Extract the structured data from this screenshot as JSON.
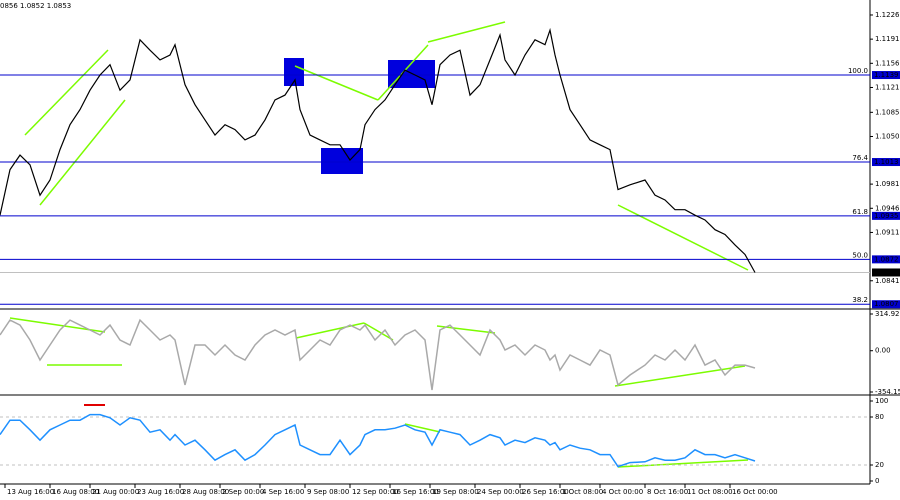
{
  "header": {
    "text": "0856 1.0852 1.0853"
  },
  "chart_data": [
    {
      "type": "line",
      "color": "#000000",
      "x": [
        0,
        2,
        4,
        6,
        8,
        10,
        12,
        14,
        16,
        18,
        20,
        22,
        24,
        26,
        28,
        30,
        32,
        34,
        35,
        37,
        39,
        41,
        43,
        45,
        47,
        49,
        51,
        53,
        55,
        57,
        59,
        60,
        62,
        64,
        66,
        68,
        70,
        72,
        73,
        75,
        77,
        79,
        81,
        83,
        85,
        86.4,
        88,
        90,
        92,
        94,
        96,
        98,
        100,
        101,
        103,
        105,
        107,
        109,
        110,
        111,
        112,
        114,
        116,
        118,
        120,
        122,
        123.6,
        126,
        129,
        131,
        133,
        135,
        137,
        139,
        141,
        143,
        145,
        147,
        149,
        151
      ],
      "values": [
        1.0936,
        1.1002,
        1.1023,
        1.1009,
        1.0965,
        1.0987,
        1.1031,
        1.1067,
        1.1089,
        1.1117,
        1.1139,
        1.1154,
        1.1117,
        1.1132,
        1.119,
        1.1175,
        1.1161,
        1.1168,
        1.1183,
        1.1125,
        1.1096,
        1.1074,
        1.1052,
        1.1067,
        1.106,
        1.1045,
        1.1052,
        1.1074,
        1.1103,
        1.111,
        1.1132,
        1.1089,
        1.1052,
        1.1045,
        1.1038,
        1.1038,
        1.1016,
        1.1031,
        1.1067,
        1.1089,
        1.1103,
        1.1125,
        1.1146,
        1.1139,
        1.1132,
        1.1096,
        1.1154,
        1.1168,
        1.1175,
        1.111,
        1.1125,
        1.1161,
        1.1197,
        1.1161,
        1.1139,
        1.1168,
        1.119,
        1.1183,
        1.1204,
        1.1168,
        1.1139,
        1.1089,
        1.1067,
        1.1045,
        1.1038,
        1.1031,
        1.0973,
        1.098,
        1.0987,
        1.0965,
        1.0958,
        1.0944,
        1.0944,
        1.0936,
        1.0929,
        1.0915,
        1.0908,
        1.0893,
        1.0879,
        1.0853
      ],
      "xlim": [
        0,
        174
      ],
      "ylim": [
        1.0803,
        1.12477
      ],
      "yticks": [
        1.1226,
        1.1191,
        1.1156,
        1.1121,
        1.1085,
        {
          "value": 1.105,
          "label": "1.1050"
        },
        1.0981,
        1.0946,
        1.0911,
        1.0841
      ],
      "levels": [
        {
          "label": "100.0",
          "value": 1.1139
        },
        {
          "label": "76.4",
          "value": 1.1013
        },
        {
          "label": "61.8",
          "value": 1.0935
        },
        {
          "label": "50.0",
          "value": 1.0872
        },
        {
          "label": "38.2",
          "value": 1.0807
        }
      ],
      "level_color": "#0000cd",
      "last": 1.0853
    },
    {
      "type": "line",
      "color": "#a9a9a9",
      "x": [
        0,
        2,
        4,
        6,
        8,
        10,
        12,
        14,
        16,
        18,
        20,
        22,
        24,
        26,
        28,
        30,
        32,
        34,
        35,
        37,
        39,
        41,
        43,
        45,
        47,
        49,
        51,
        53,
        55,
        57,
        59,
        60,
        62,
        64,
        66,
        68,
        70,
        72,
        73,
        75,
        77,
        79,
        81,
        83,
        85,
        86.4,
        88,
        90,
        92,
        94,
        96,
        98,
        100,
        101,
        103,
        105,
        107,
        109,
        110,
        111,
        112,
        114,
        116,
        118,
        120,
        122,
        123.6,
        126,
        129,
        131,
        133,
        135,
        137,
        139,
        141,
        143,
        145,
        147,
        149,
        151
      ],
      "values": [
        135,
        263,
        220,
        92,
        -80,
        49,
        178,
        263,
        220,
        178,
        135,
        220,
        92,
        49,
        263,
        178,
        92,
        135,
        92,
        -294,
        49,
        49,
        -37,
        49,
        -37,
        -80,
        49,
        135,
        178,
        135,
        178,
        -80,
        6,
        92,
        49,
        178,
        220,
        178,
        220,
        92,
        178,
        49,
        135,
        178,
        92,
        -337,
        178,
        220,
        135,
        49,
        -37,
        178,
        92,
        6,
        49,
        -37,
        49,
        6,
        -80,
        -37,
        -166,
        -37,
        -80,
        -123,
        6,
        -37,
        -294,
        -208,
        -123,
        -37,
        -80,
        6,
        -80,
        49,
        -123,
        -80,
        -208,
        -123,
        -123,
        -148
      ],
      "xlim": [
        0,
        174
      ],
      "ylim": [
        -362.7,
        340.7
      ],
      "yticks": [
        314.9232,
        {
          "value": 0,
          "label": "0.00"
        },
        -354.159
      ]
    },
    {
      "type": "line",
      "color": "#1e90ff",
      "x": [
        0,
        2,
        4,
        6,
        8,
        10,
        12,
        14,
        16,
        18,
        20,
        22,
        24,
        26,
        28,
        30,
        32,
        34,
        35,
        37,
        39,
        41,
        43,
        45,
        47,
        49,
        51,
        53,
        55,
        57,
        59,
        60,
        62,
        64,
        66,
        68,
        70,
        72,
        73,
        75,
        77,
        79,
        81,
        83,
        85,
        86.4,
        88,
        90,
        92,
        94,
        96,
        98,
        100,
        101,
        103,
        105,
        107,
        109,
        110,
        111,
        112,
        114,
        116,
        118,
        120,
        122,
        123.6,
        126,
        129,
        131,
        133,
        135,
        137,
        139,
        141,
        143,
        145,
        147,
        149,
        151
      ],
      "values": [
        58,
        76,
        76,
        64,
        51,
        64,
        70,
        76,
        76,
        83,
        83,
        79,
        70,
        79,
        76,
        61,
        64,
        51,
        58,
        45,
        51,
        39,
        26,
        33,
        39,
        26,
        33,
        45,
        58,
        64,
        70,
        45,
        39,
        33,
        33,
        51,
        33,
        45,
        58,
        64,
        64,
        66,
        70,
        64,
        61,
        45,
        64,
        61,
        58,
        45,
        51,
        58,
        54,
        45,
        51,
        48,
        54,
        51,
        45,
        48,
        39,
        45,
        41,
        39,
        33,
        33,
        18,
        23,
        24,
        29,
        26,
        26,
        29,
        39,
        33,
        33,
        29,
        33,
        29,
        25
      ],
      "xlim": [
        0,
        174
      ],
      "ylim": [
        -2.5,
        105
      ],
      "yticks": [
        100,
        80,
        20,
        0
      ],
      "levels": [
        80,
        20
      ],
      "xticks": [
        {
          "value": 1,
          "label": "13 Aug 16:00"
        },
        {
          "value": 10,
          "label": "16 Aug 08:00"
        },
        {
          "value": 18,
          "label": "21 Aug 00:00"
        },
        {
          "value": 27,
          "label": "23 Aug 16:00"
        },
        {
          "value": 36,
          "label": "28 Aug 08:00"
        },
        {
          "value": 44,
          "label": "2 Sep 00:00"
        },
        {
          "value": 52,
          "label": "4 Sep 16:00"
        },
        {
          "value": 61,
          "label": "9 Sep 08:00"
        },
        {
          "value": 70,
          "label": "12 Sep 00:00"
        },
        {
          "value": 78,
          "label": "16 Sep 16:00"
        },
        {
          "value": 86,
          "label": "19 Sep 08:00"
        },
        {
          "value": 95,
          "label": "24 Sep 00:00"
        },
        {
          "value": 104,
          "label": "26 Sep 16:00"
        },
        {
          "value": 112,
          "label": "1 Oct 08:00"
        },
        {
          "value": 120,
          "label": "4 Oct 00:00"
        },
        {
          "value": 129,
          "label": "8 Oct 16:00"
        },
        {
          "value": 137,
          "label": "11 Oct 08:00"
        },
        {
          "value": 146,
          "label": "16 Oct 00:00"
        }
      ]
    }
  ]
}
